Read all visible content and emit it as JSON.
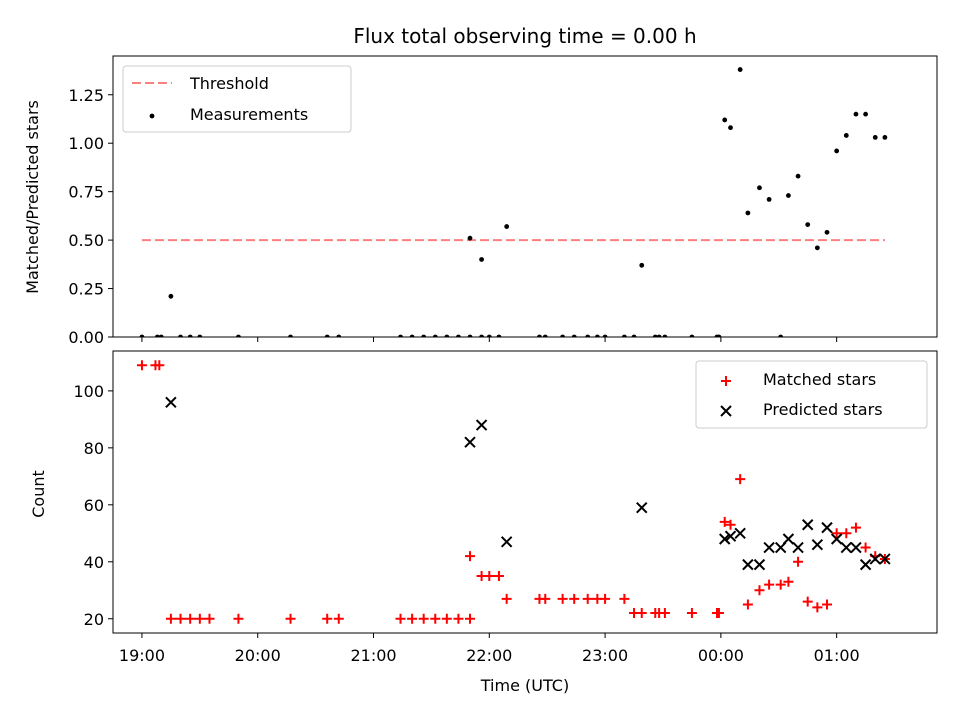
{
  "chart_data": [
    {
      "type": "scatter",
      "title": "Flux total observing time = 0.00 h",
      "xlabel": "",
      "ylabel": "Matched/Predicted stars",
      "ylim": [
        0.0,
        1.45
      ],
      "yticks": [
        0.0,
        0.25,
        0.5,
        0.75,
        1.0,
        1.25
      ],
      "yticklabels": [
        "0.00",
        "0.25",
        "0.50",
        "0.75",
        "1.00",
        "1.25"
      ],
      "xlim": [
        "18:45",
        "01:52"
      ],
      "grid": false,
      "legend": {
        "placement": "top-left",
        "entries": [
          "Threshold",
          "Measurements"
        ]
      },
      "series": [
        {
          "name": "Threshold",
          "kind": "line",
          "style": "dashed",
          "color": "#ff7f7f",
          "x": [
            "19:00",
            "01:25"
          ],
          "y": [
            0.5,
            0.5
          ]
        },
        {
          "name": "Measurements",
          "kind": "points",
          "color": "#000000",
          "x": [
            "19:00",
            "19:08",
            "19:10",
            "19:15",
            "19:20",
            "19:25",
            "19:30",
            "19:50",
            "20:17",
            "20:36",
            "20:42",
            "21:14",
            "21:20",
            "21:26",
            "21:32",
            "21:38",
            "21:44",
            "21:50",
            "21:56",
            "21:50",
            "21:56",
            "22:00",
            "22:05",
            "22:09",
            "22:26",
            "22:29",
            "22:38",
            "22:44",
            "22:51",
            "22:56",
            "23:00",
            "23:10",
            "23:15",
            "23:19",
            "23:26",
            "23:28",
            "23:31",
            "23:45",
            "23:58",
            "23:59",
            "00:02",
            "00:05",
            "00:10",
            "00:14",
            "00:20",
            "00:25",
            "00:31",
            "00:35",
            "00:40",
            "00:45",
            "00:50",
            "00:55",
            "01:00",
            "01:05",
            "01:10",
            "01:15",
            "01:20",
            "01:25"
          ],
          "y": [
            0.0,
            0.0,
            0.0,
            0.21,
            0.0,
            0.0,
            0.0,
            0.0,
            0.0,
            0.0,
            0.0,
            0.0,
            0.0,
            0.0,
            0.0,
            0.0,
            0.0,
            0.0,
            0.0,
            0.51,
            0.4,
            0.0,
            0.0,
            0.57,
            0.0,
            0.0,
            0.0,
            0.0,
            0.0,
            0.0,
            0.0,
            0.0,
            0.0,
            0.37,
            0.0,
            0.0,
            0.0,
            0.0,
            0.0,
            0.0,
            1.12,
            1.08,
            1.38,
            0.64,
            0.77,
            0.71,
            0.0,
            0.73,
            0.83,
            0.58,
            0.46,
            0.54,
            0.96,
            1.04,
            1.15,
            1.15,
            1.03,
            1.03
          ]
        }
      ]
    },
    {
      "type": "scatter",
      "title": "",
      "xlabel": "Time (UTC)",
      "ylabel": "Count",
      "ylim": [
        15,
        114
      ],
      "yticks": [
        20,
        40,
        60,
        80,
        100
      ],
      "yticklabels": [
        "20",
        "40",
        "60",
        "80",
        "100"
      ],
      "xlim": [
        "18:45",
        "01:52"
      ],
      "xticks": [
        "19:00",
        "20:00",
        "21:00",
        "22:00",
        "23:00",
        "00:00",
        "01:00"
      ],
      "xticklabels": [
        "19:00",
        "20:00",
        "21:00",
        "22:00",
        "23:00",
        "00:00",
        "01:00"
      ],
      "grid": false,
      "legend": {
        "placement": "top-right",
        "entries": [
          "Matched stars",
          "Predicted stars"
        ]
      },
      "series": [
        {
          "name": "Matched stars",
          "marker": "plus",
          "color": "#ff0000",
          "x": [
            "19:00",
            "19:07",
            "19:09",
            "19:15",
            "19:20",
            "19:25",
            "19:30",
            "19:35",
            "19:50",
            "20:17",
            "20:36",
            "20:42",
            "21:14",
            "21:20",
            "21:26",
            "21:32",
            "21:38",
            "21:44",
            "21:50",
            "21:50",
            "21:56",
            "22:00",
            "22:05",
            "22:09",
            "22:26",
            "22:29",
            "22:38",
            "22:44",
            "22:51",
            "22:56",
            "23:00",
            "23:10",
            "23:15",
            "23:19",
            "23:26",
            "23:28",
            "23:31",
            "23:45",
            "23:58",
            "23:59",
            "00:02",
            "00:05",
            "00:10",
            "00:14",
            "00:20",
            "00:25",
            "00:31",
            "00:35",
            "00:40",
            "00:45",
            "00:50",
            "00:55",
            "01:00",
            "01:05",
            "01:10",
            "01:15",
            "01:20",
            "01:25"
          ],
          "y": [
            109,
            109,
            109,
            20,
            20,
            20,
            20,
            20,
            20,
            20,
            20,
            20,
            20,
            20,
            20,
            20,
            20,
            20,
            20,
            42,
            35,
            35,
            35,
            27,
            27,
            27,
            27,
            27,
            27,
            27,
            27,
            27,
            22,
            22,
            22,
            22,
            22,
            22,
            22,
            22,
            54,
            53,
            69,
            25,
            30,
            32,
            32,
            33,
            40,
            26,
            24,
            25,
            50,
            50,
            52,
            45,
            42,
            41
          ]
        },
        {
          "name": "Predicted stars",
          "marker": "x",
          "color": "#000000",
          "x": [
            "19:15",
            "21:50",
            "21:56",
            "22:09",
            "23:19",
            "00:02",
            "00:05",
            "00:10",
            "00:14",
            "00:20",
            "00:25",
            "00:31",
            "00:35",
            "00:40",
            "00:45",
            "00:50",
            "00:55",
            "01:00",
            "01:05",
            "01:10",
            "01:15",
            "01:20",
            "01:25"
          ],
          "y": [
            96,
            82,
            88,
            47,
            59,
            48,
            49,
            50,
            39,
            39,
            45,
            45,
            48,
            45,
            53,
            46,
            52,
            48,
            45,
            45,
            39,
            41,
            41
          ]
        }
      ]
    }
  ]
}
